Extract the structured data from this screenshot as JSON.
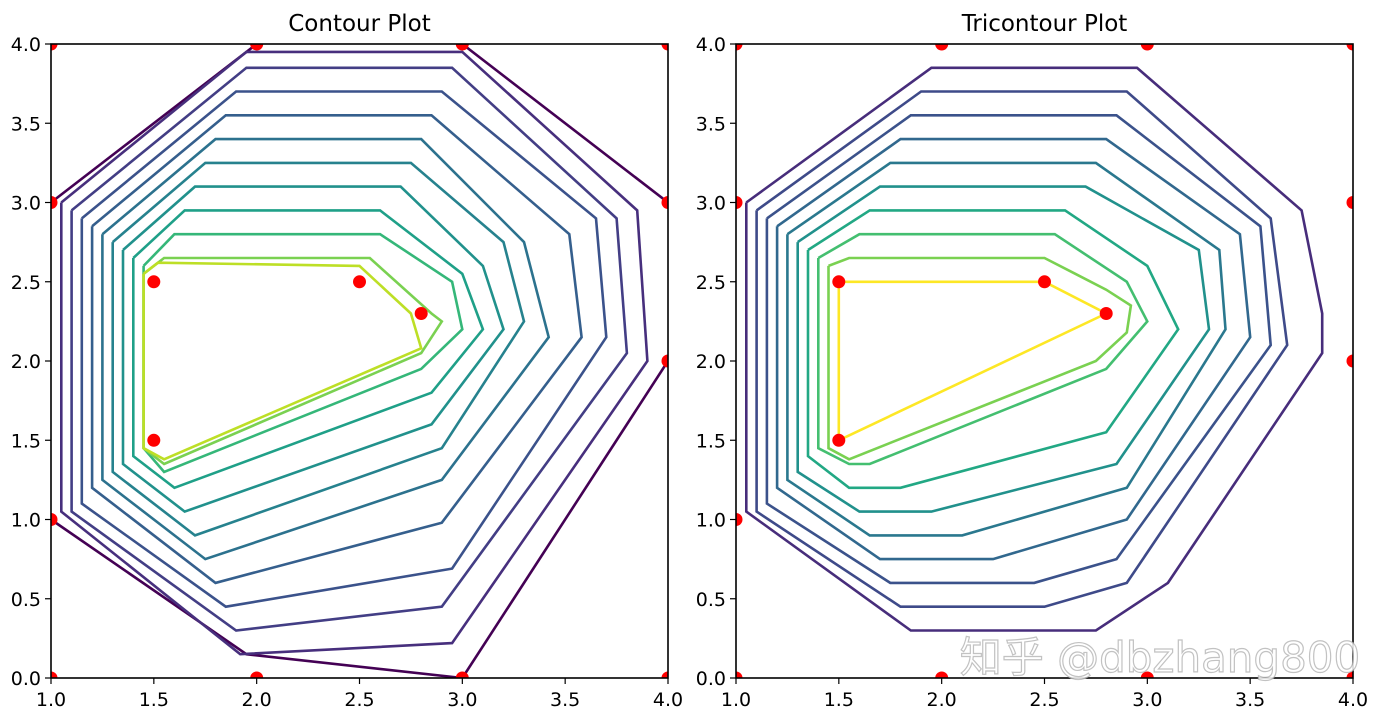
{
  "watermark": "知乎 @dbzhang800",
  "chart_data": [
    {
      "type": "contour",
      "title": "Contour Plot",
      "xlim": [
        1.0,
        4.0
      ],
      "ylim": [
        0.0,
        4.0
      ],
      "xticks": [
        "1.0",
        "1.5",
        "2.0",
        "2.5",
        "3.0",
        "3.5",
        "4.0"
      ],
      "yticks": [
        "0.0",
        "0.5",
        "1.0",
        "1.5",
        "2.0",
        "2.5",
        "3.0",
        "3.5",
        "4.0"
      ],
      "colormap": "viridis",
      "points": [
        [
          1,
          0
        ],
        [
          2,
          0
        ],
        [
          3,
          0
        ],
        [
          4,
          0
        ],
        [
          1,
          4
        ],
        [
          2,
          4
        ],
        [
          3,
          4
        ],
        [
          4,
          4
        ],
        [
          1,
          1
        ],
        [
          1,
          3
        ],
        [
          4,
          2
        ],
        [
          4,
          3
        ],
        [
          1.5,
          2.5
        ],
        [
          1.5,
          1.5
        ],
        [
          2.5,
          2.5
        ],
        [
          2.8,
          2.3
        ]
      ],
      "point_color": "#ff0000",
      "contours": [
        {
          "color": "#440154",
          "points": [
            [
              1.0,
              3.0
            ],
            [
              2.0,
              4.0
            ]
          ]
        },
        {
          "color": "#440154",
          "points": [
            [
              3.0,
              4.0
            ],
            [
              4.0,
              3.0
            ]
          ]
        },
        {
          "color": "#440154",
          "points": [
            [
              1.0,
              1.0
            ],
            [
              1.95,
              0.15
            ],
            [
              3.0,
              0.0
            ]
          ]
        },
        {
          "color": "#440154",
          "points": [
            [
              3.0,
              0.0
            ],
            [
              4.0,
              2.0
            ]
          ]
        },
        {
          "color": "#472f7d",
          "points": [
            [
              1.05,
              3.0
            ],
            [
              1.95,
              3.95
            ],
            [
              3.0,
              3.95
            ],
            [
              3.85,
              2.95
            ],
            [
              3.9,
              2.0
            ],
            [
              2.95,
              0.22
            ],
            [
              1.92,
              0.15
            ],
            [
              1.05,
              1.05
            ],
            [
              1.05,
              3.0
            ]
          ]
        },
        {
          "color": "#433e85",
          "points": [
            [
              1.1,
              2.95
            ],
            [
              1.95,
              3.85
            ],
            [
              2.95,
              3.85
            ],
            [
              3.75,
              2.9
            ],
            [
              3.8,
              2.05
            ],
            [
              2.9,
              0.45
            ],
            [
              1.9,
              0.3
            ],
            [
              1.1,
              1.05
            ],
            [
              1.1,
              2.95
            ]
          ]
        },
        {
          "color": "#3b528b",
          "points": [
            [
              1.15,
              2.9
            ],
            [
              1.9,
              3.7
            ],
            [
              2.9,
              3.7
            ],
            [
              3.65,
              2.9
            ],
            [
              3.7,
              2.15
            ],
            [
              2.95,
              0.69
            ],
            [
              1.85,
              0.45
            ],
            [
              1.15,
              1.1
            ],
            [
              1.15,
              2.9
            ]
          ]
        },
        {
          "color": "#355f8d",
          "points": [
            [
              1.2,
              2.85
            ],
            [
              1.85,
              3.55
            ],
            [
              2.85,
              3.55
            ],
            [
              3.52,
              2.8
            ],
            [
              3.58,
              2.15
            ],
            [
              2.9,
              0.98
            ],
            [
              1.8,
              0.6
            ],
            [
              1.2,
              1.2
            ],
            [
              1.2,
              2.85
            ]
          ]
        },
        {
          "color": "#2c728e",
          "points": [
            [
              1.25,
              2.8
            ],
            [
              1.8,
              3.4
            ],
            [
              2.8,
              3.4
            ],
            [
              3.3,
              2.75
            ],
            [
              3.42,
              2.15
            ],
            [
              2.9,
              1.25
            ],
            [
              1.75,
              0.75
            ],
            [
              1.25,
              1.25
            ],
            [
              1.25,
              2.8
            ]
          ]
        },
        {
          "color": "#26828e",
          "points": [
            [
              1.3,
              2.75
            ],
            [
              1.75,
              3.25
            ],
            [
              2.75,
              3.25
            ],
            [
              3.2,
              2.75
            ],
            [
              3.3,
              2.25
            ],
            [
              2.9,
              1.45
            ],
            [
              1.7,
              0.9
            ],
            [
              1.3,
              1.3
            ],
            [
              1.3,
              2.75
            ]
          ]
        },
        {
          "color": "#21918c",
          "points": [
            [
              1.35,
              2.7
            ],
            [
              1.7,
              3.1
            ],
            [
              2.7,
              3.1
            ],
            [
              3.1,
              2.6
            ],
            [
              3.2,
              2.2
            ],
            [
              2.85,
              1.6
            ],
            [
              1.65,
              1.05
            ],
            [
              1.35,
              1.35
            ],
            [
              1.35,
              2.7
            ]
          ]
        },
        {
          "color": "#1fa088",
          "points": [
            [
              1.4,
              2.65
            ],
            [
              1.65,
              2.95
            ],
            [
              2.6,
              2.95
            ],
            [
              3.0,
              2.55
            ],
            [
              3.1,
              2.2
            ],
            [
              2.85,
              1.8
            ],
            [
              1.6,
              1.2
            ],
            [
              1.4,
              1.4
            ],
            [
              1.4,
              2.65
            ]
          ]
        },
        {
          "color": "#35b779",
          "points": [
            [
              1.45,
              2.6
            ],
            [
              1.6,
              2.8
            ],
            [
              2.6,
              2.8
            ],
            [
              2.95,
              2.5
            ],
            [
              3.0,
              2.2
            ],
            [
              2.8,
              1.95
            ],
            [
              1.55,
              1.3
            ],
            [
              1.45,
              1.45
            ],
            [
              1.45,
              2.6
            ]
          ]
        },
        {
          "color": "#7ad151",
          "points": [
            [
              1.45,
              2.55
            ],
            [
              1.55,
              2.65
            ],
            [
              2.55,
              2.65
            ],
            [
              2.85,
              2.3
            ],
            [
              2.9,
              2.25
            ],
            [
              2.8,
              2.05
            ],
            [
              1.55,
              1.35
            ],
            [
              1.45,
              1.45
            ],
            [
              1.45,
              2.55
            ]
          ]
        },
        {
          "color": "#bddf26",
          "points": [
            [
              1.45,
              2.55
            ],
            [
              1.52,
              2.62
            ],
            [
              2.5,
              2.6
            ],
            [
              2.75,
              2.3
            ],
            [
              2.8,
              2.08
            ],
            [
              1.55,
              1.38
            ],
            [
              1.45,
              1.45
            ],
            [
              1.45,
              2.55
            ]
          ]
        }
      ]
    },
    {
      "type": "tricontour",
      "title": "Tricontour Plot",
      "xlim": [
        1.0,
        4.0
      ],
      "ylim": [
        0.0,
        4.0
      ],
      "xticks": [
        "1.0",
        "1.5",
        "2.0",
        "2.5",
        "3.0",
        "3.5",
        "4.0"
      ],
      "yticks": [
        "0.0",
        "0.5",
        "1.0",
        "1.5",
        "2.0",
        "2.5",
        "3.0",
        "3.5",
        "4.0"
      ],
      "colormap": "viridis",
      "points": [
        [
          1,
          0
        ],
        [
          2,
          0
        ],
        [
          3,
          0
        ],
        [
          4,
          0
        ],
        [
          1,
          4
        ],
        [
          2,
          4
        ],
        [
          3,
          4
        ],
        [
          4,
          4
        ],
        [
          1,
          1
        ],
        [
          1,
          3
        ],
        [
          4,
          2
        ],
        [
          4,
          3
        ],
        [
          1.5,
          2.5
        ],
        [
          1.5,
          1.5
        ],
        [
          2.5,
          2.5
        ],
        [
          2.8,
          2.3
        ]
      ],
      "point_color": "#ff0000",
      "contours": [
        {
          "color": "#472d7b",
          "points": [
            [
              1.05,
              3.0
            ],
            [
              1.95,
              3.85
            ],
            [
              2.95,
              3.85
            ],
            [
              3.75,
              2.95
            ],
            [
              3.85,
              2.3
            ],
            [
              3.85,
              2.05
            ],
            [
              3.1,
              0.6
            ],
            [
              2.75,
              0.3
            ],
            [
              1.85,
              0.3
            ],
            [
              1.05,
              1.05
            ],
            [
              1.05,
              3.0
            ]
          ]
        },
        {
          "color": "#3e4a89",
          "points": [
            [
              1.1,
              2.95
            ],
            [
              1.9,
              3.7
            ],
            [
              2.9,
              3.7
            ],
            [
              3.6,
              2.9
            ],
            [
              3.68,
              2.1
            ],
            [
              2.9,
              0.6
            ],
            [
              2.5,
              0.45
            ],
            [
              1.8,
              0.45
            ],
            [
              1.1,
              1.05
            ],
            [
              1.1,
              2.95
            ]
          ]
        },
        {
          "color": "#3b528b",
          "points": [
            [
              1.15,
              2.9
            ],
            [
              1.85,
              3.55
            ],
            [
              2.85,
              3.55
            ],
            [
              3.55,
              2.85
            ],
            [
              3.6,
              2.1
            ],
            [
              2.85,
              0.75
            ],
            [
              2.45,
              0.6
            ],
            [
              1.75,
              0.6
            ],
            [
              1.15,
              1.1
            ],
            [
              1.15,
              2.9
            ]
          ]
        },
        {
          "color": "#31688e",
          "points": [
            [
              1.2,
              2.85
            ],
            [
              1.8,
              3.4
            ],
            [
              2.8,
              3.4
            ],
            [
              3.45,
              2.8
            ],
            [
              3.5,
              2.15
            ],
            [
              2.9,
              1.0
            ],
            [
              2.25,
              0.75
            ],
            [
              1.7,
              0.75
            ],
            [
              1.2,
              1.2
            ],
            [
              1.2,
              2.85
            ]
          ]
        },
        {
          "color": "#2a788e",
          "points": [
            [
              1.25,
              2.8
            ],
            [
              1.75,
              3.25
            ],
            [
              2.75,
              3.25
            ],
            [
              3.35,
              2.7
            ],
            [
              3.38,
              2.2
            ],
            [
              2.9,
              1.2
            ],
            [
              2.1,
              0.9
            ],
            [
              1.65,
              0.9
            ],
            [
              1.25,
              1.25
            ],
            [
              1.25,
              2.8
            ]
          ]
        },
        {
          "color": "#21918c",
          "points": [
            [
              1.3,
              2.75
            ],
            [
              1.7,
              3.1
            ],
            [
              2.7,
              3.1
            ],
            [
              3.25,
              2.7
            ],
            [
              3.3,
              2.2
            ],
            [
              2.85,
              1.35
            ],
            [
              1.95,
              1.05
            ],
            [
              1.6,
              1.05
            ],
            [
              1.3,
              1.3
            ],
            [
              1.3,
              2.75
            ]
          ]
        },
        {
          "color": "#22a884",
          "points": [
            [
              1.35,
              2.7
            ],
            [
              1.65,
              2.95
            ],
            [
              2.6,
              2.95
            ],
            [
              3.0,
              2.6
            ],
            [
              3.15,
              2.2
            ],
            [
              2.8,
              1.55
            ],
            [
              1.8,
              1.2
            ],
            [
              1.55,
              1.2
            ],
            [
              1.35,
              1.4
            ],
            [
              1.35,
              2.7
            ]
          ]
        },
        {
          "color": "#44bf70",
          "points": [
            [
              1.4,
              2.65
            ],
            [
              1.6,
              2.8
            ],
            [
              2.55,
              2.8
            ],
            [
              2.9,
              2.5
            ],
            [
              3.0,
              2.25
            ],
            [
              2.8,
              1.95
            ],
            [
              1.65,
              1.35
            ],
            [
              1.55,
              1.35
            ],
            [
              1.4,
              1.45
            ],
            [
              1.4,
              2.65
            ]
          ]
        },
        {
          "color": "#7ad151",
          "points": [
            [
              1.45,
              2.6
            ],
            [
              1.55,
              2.65
            ],
            [
              2.5,
              2.65
            ],
            [
              2.65,
              2.55
            ],
            [
              2.8,
              2.45
            ],
            [
              2.92,
              2.35
            ],
            [
              2.9,
              2.18
            ],
            [
              2.75,
              2.0
            ],
            [
              1.55,
              1.38
            ],
            [
              1.45,
              1.45
            ],
            [
              1.45,
              2.6
            ]
          ]
        },
        {
          "color": "#fde725",
          "points": [
            [
              1.5,
              2.5
            ],
            [
              2.5,
              2.5
            ],
            [
              2.8,
              2.3
            ],
            [
              1.5,
              1.5
            ],
            [
              1.5,
              2.5
            ]
          ]
        }
      ]
    }
  ]
}
